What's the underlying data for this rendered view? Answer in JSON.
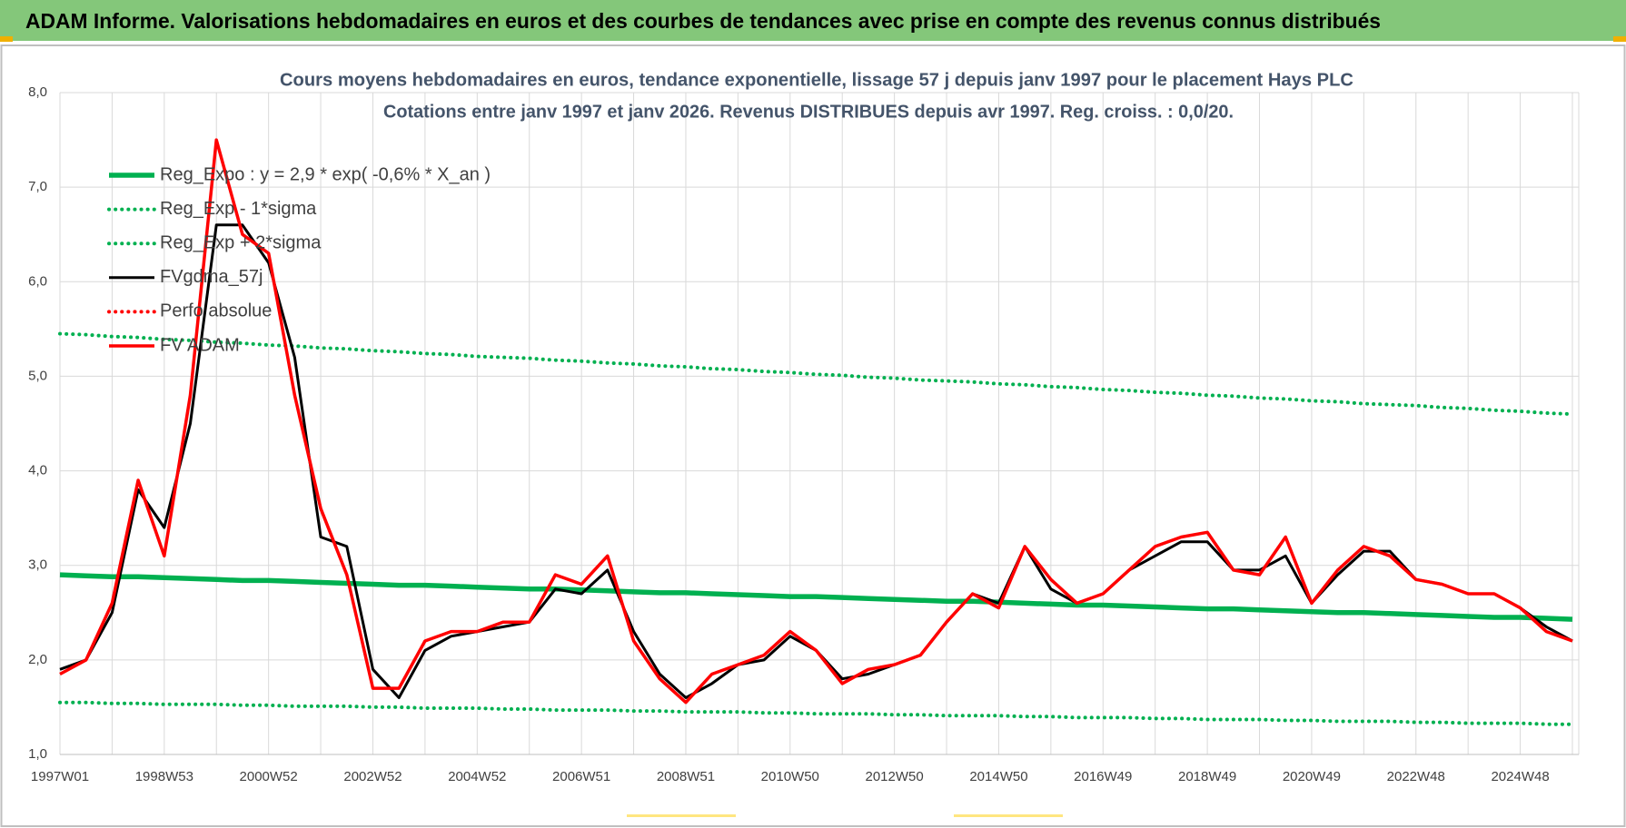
{
  "header": {
    "title": "ADAM Informe. Valorisations hebdomadaires en euros et des courbes de tendances avec prise en compte des revenus connus distribués"
  },
  "chart_data": {
    "type": "line",
    "title": "Cours moyens hebdomadaires en euros, tendance exponentielle, lissage 57 j depuis janv 1997  pour le placement Hays PLC",
    "subtitle": "Cotations entre janv 1997 et janv 2026. Revenus DISTRIBUES depuis avr 1997. Reg. croiss. : 0,0/20.",
    "categories": [
      "1997W01",
      null,
      null,
      null,
      "1998W53",
      null,
      null,
      null,
      "2000W52",
      null,
      null,
      null,
      "2002W52",
      null,
      null,
      null,
      "2004W52",
      null,
      null,
      null,
      "2006W51",
      null,
      null,
      null,
      "2008W51",
      null,
      null,
      null,
      "2010W50",
      null,
      null,
      null,
      "2012W50",
      null,
      null,
      null,
      "2014W50",
      null,
      null,
      null,
      "2016W49",
      null,
      null,
      null,
      "2018W49",
      null,
      null,
      null,
      "2020W49",
      null,
      null,
      null,
      "2022W48",
      null,
      null,
      null,
      "2024W48",
      null,
      null
    ],
    "ylim": [
      1,
      8
    ],
    "yticks": [
      {
        "value": 1,
        "label": "1,0"
      },
      {
        "value": 2,
        "label": "2,0"
      },
      {
        "value": 3,
        "label": "3,0"
      },
      {
        "value": 4,
        "label": "4,0"
      },
      {
        "value": 5,
        "label": "5,0"
      },
      {
        "value": 6,
        "label": "6,0"
      },
      {
        "value": 7,
        "label": "7,0"
      },
      {
        "value": 8,
        "label": "8,0"
      }
    ],
    "grid": true,
    "legend": "top-left",
    "series": [
      {
        "name": "Reg_Expo : y = 2,9 * exp( -0,6% *  X_an )",
        "color": "#00b050",
        "line_style": "solid",
        "values": [
          2.9,
          2.89,
          2.88,
          2.88,
          2.87,
          2.86,
          2.85,
          2.84,
          2.84,
          2.83,
          2.82,
          2.81,
          2.8,
          2.79,
          2.79,
          2.78,
          2.77,
          2.76,
          2.75,
          2.75,
          2.74,
          2.73,
          2.72,
          2.71,
          2.71,
          2.7,
          2.69,
          2.68,
          2.67,
          2.67,
          2.66,
          2.65,
          2.64,
          2.63,
          2.62,
          2.62,
          2.61,
          2.6,
          2.59,
          2.58,
          2.58,
          2.57,
          2.56,
          2.55,
          2.54,
          2.54,
          2.53,
          2.52,
          2.51,
          2.5,
          2.5,
          2.49,
          2.48,
          2.47,
          2.46,
          2.45,
          2.45,
          2.44,
          2.43
        ]
      },
      {
        "name": "Reg_Exp - 1*sigma",
        "color": "#00b050",
        "line_style": "dotted",
        "values": [
          1.55,
          1.55,
          1.54,
          1.54,
          1.53,
          1.53,
          1.53,
          1.52,
          1.52,
          1.51,
          1.51,
          1.51,
          1.5,
          1.5,
          1.49,
          1.49,
          1.49,
          1.48,
          1.48,
          1.47,
          1.47,
          1.47,
          1.46,
          1.46,
          1.45,
          1.45,
          1.45,
          1.44,
          1.44,
          1.43,
          1.43,
          1.43,
          1.42,
          1.42,
          1.41,
          1.41,
          1.41,
          1.4,
          1.4,
          1.39,
          1.39,
          1.39,
          1.38,
          1.38,
          1.37,
          1.37,
          1.37,
          1.36,
          1.36,
          1.35,
          1.35,
          1.35,
          1.34,
          1.34,
          1.33,
          1.33,
          1.33,
          1.32,
          1.32
        ]
      },
      {
        "name": "Reg_Exp + 2*sigma",
        "color": "#00b050",
        "line_style": "dotted",
        "values": [
          5.45,
          5.44,
          5.42,
          5.41,
          5.39,
          5.38,
          5.36,
          5.35,
          5.33,
          5.32,
          5.3,
          5.29,
          5.27,
          5.26,
          5.24,
          5.23,
          5.21,
          5.2,
          5.19,
          5.17,
          5.16,
          5.14,
          5.13,
          5.11,
          5.1,
          5.08,
          5.07,
          5.05,
          5.04,
          5.02,
          5.01,
          4.99,
          4.98,
          4.96,
          4.95,
          4.94,
          4.92,
          4.91,
          4.89,
          4.88,
          4.86,
          4.85,
          4.83,
          4.82,
          4.8,
          4.79,
          4.77,
          4.76,
          4.74,
          4.73,
          4.71,
          4.7,
          4.69,
          4.67,
          4.66,
          4.64,
          4.63,
          4.61,
          4.6
        ]
      },
      {
        "name": "FVgdma_57j",
        "color": "#000000",
        "line_style": "solid",
        "values": [
          1.9,
          2.0,
          2.5,
          3.8,
          3.4,
          4.5,
          6.6,
          6.6,
          6.2,
          5.2,
          3.3,
          3.2,
          1.9,
          1.6,
          2.1,
          2.25,
          2.3,
          2.35,
          2.4,
          2.75,
          2.7,
          2.95,
          2.3,
          1.85,
          1.6,
          1.75,
          1.95,
          2.0,
          2.25,
          2.1,
          1.8,
          1.85,
          1.95,
          2.05,
          2.4,
          2.7,
          2.6,
          3.2,
          2.75,
          2.6,
          2.7,
          2.95,
          3.1,
          3.25,
          3.25,
          2.95,
          2.95,
          3.1,
          2.6,
          2.9,
          3.15,
          3.15,
          2.85,
          2.8,
          2.7,
          2.7,
          2.55,
          2.35,
          2.2
        ]
      },
      {
        "name": "Perfo absolue",
        "color": "#ff0000",
        "line_style": "dotted",
        "values": [
          null,
          null,
          null,
          null,
          null,
          null,
          null,
          null,
          null,
          null,
          null,
          null,
          null,
          null,
          null,
          null,
          null,
          null,
          null,
          null,
          null,
          null,
          null,
          null,
          null,
          null,
          null,
          null,
          null,
          null,
          null,
          null,
          null,
          null,
          null,
          null,
          null,
          null,
          null,
          null,
          null,
          null,
          null,
          null,
          null,
          null,
          null,
          null,
          null,
          null,
          null,
          null,
          null,
          null,
          null,
          null,
          null,
          null,
          null
        ]
      },
      {
        "name": "FV ADAM",
        "color": "#ff0000",
        "line_style": "solid",
        "values": [
          1.85,
          2.0,
          2.6,
          3.9,
          3.1,
          4.8,
          7.5,
          6.5,
          6.3,
          4.8,
          3.6,
          2.9,
          1.7,
          1.7,
          2.2,
          2.3,
          2.3,
          2.4,
          2.4,
          2.9,
          2.8,
          3.1,
          2.2,
          1.8,
          1.55,
          1.85,
          1.95,
          2.05,
          2.3,
          2.1,
          1.75,
          1.9,
          1.95,
          2.05,
          2.4,
          2.7,
          2.55,
          3.2,
          2.85,
          2.6,
          2.7,
          2.95,
          3.2,
          3.3,
          3.35,
          2.95,
          2.9,
          3.3,
          2.6,
          2.95,
          3.2,
          3.1,
          2.85,
          2.8,
          2.7,
          2.7,
          2.55,
          2.3,
          2.2
        ]
      }
    ]
  }
}
